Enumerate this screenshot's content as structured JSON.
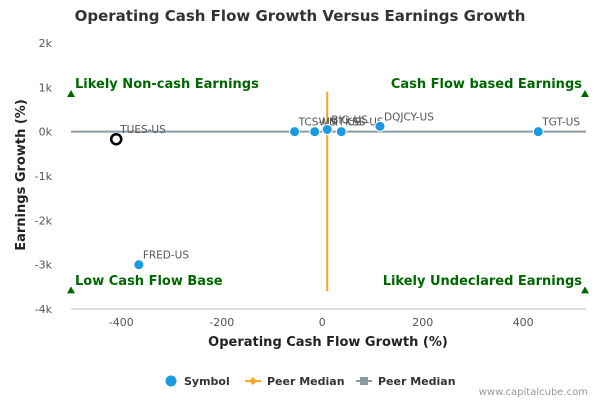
{
  "chart_data": {
    "type": "scatter",
    "title": "Operating Cash Flow Growth Versus Earnings Growth",
    "xlabel": "Operating Cash Flow Growth (%)",
    "ylabel": "Earnings Growth (%)",
    "xlim": [
      -500,
      525
    ],
    "ylim": [
      -4000,
      2000
    ],
    "x_ticks": [
      {
        "value": -400,
        "label": "-400"
      },
      {
        "value": -200,
        "label": "-200"
      },
      {
        "value": 0,
        "label": "0"
      },
      {
        "value": 200,
        "label": "200"
      },
      {
        "value": 400,
        "label": "400"
      }
    ],
    "y_ticks": [
      {
        "value": 2000,
        "label": "2k"
      },
      {
        "value": 1000,
        "label": "1k"
      },
      {
        "value": 0,
        "label": "0k"
      },
      {
        "value": -1000,
        "label": "-1k"
      },
      {
        "value": -2000,
        "label": "-2k"
      },
      {
        "value": -3000,
        "label": "-3k"
      },
      {
        "value": -4000,
        "label": "-4k"
      }
    ],
    "peer_median_x": 10,
    "peer_median_y": 0,
    "points": [
      {
        "label": "TUES-US",
        "x": -410,
        "y": -170,
        "highlight": true
      },
      {
        "label": "FRED-US",
        "x": -365,
        "y": -3000,
        "highlight": false
      },
      {
        "label": "TCS-US",
        "x": -55,
        "y": 0,
        "highlight": false
      },
      {
        "label": "WMT-US",
        "x": -15,
        "y": 0,
        "highlight": false
      },
      {
        "label": "BIG-US",
        "x": 10,
        "y": 50,
        "highlight": false
      },
      {
        "label": "KSS-US",
        "x": 38,
        "y": 0,
        "highlight": false
      },
      {
        "label": "DQJCY-US",
        "x": 115,
        "y": 120,
        "highlight": false
      },
      {
        "label": "TGT-US",
        "x": 430,
        "y": 0,
        "highlight": false
      }
    ],
    "quadrant_labels": {
      "top_left": "Likely Non-cash Earnings",
      "top_right": "Cash Flow based Earnings",
      "bottom_left": "Low Cash Flow Base",
      "bottom_right": "Likely Undeclared Earnings"
    },
    "legend": [
      {
        "label": "Symbol",
        "marker": "circle",
        "color": "#1a9ae0"
      },
      {
        "label": "Peer Median",
        "marker": "diamond-line",
        "color": "#f5a623"
      },
      {
        "label": "Peer Median",
        "marker": "square-line",
        "color": "#8c9aa6"
      }
    ]
  },
  "colors": {
    "point": "#1a9ae0",
    "highlight_stroke": "#000000",
    "vertical_median": "#f5a623",
    "horizontal_median": "#8c9aa6",
    "quadrant": "#006600"
  },
  "credit": "www.capitalcube.com"
}
